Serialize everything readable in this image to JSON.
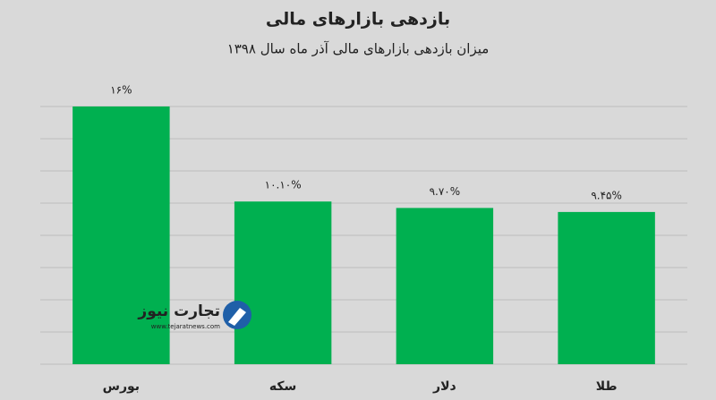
{
  "chart_data": {
    "type": "bar",
    "title": "بازدهی بازارهای مالی",
    "subtitle": "میزان بازدهی بازارهای مالی آذر ماه سال ۱۳۹۸",
    "categories": [
      "بورس",
      "سکه",
      "دلار",
      "طلا"
    ],
    "values": [
      16,
      10.1,
      9.7,
      9.45
    ],
    "value_labels": [
      "۱۶%",
      "۱۰.۱۰%",
      "۹.۷۰%",
      "۹.۴۵%"
    ],
    "color": "#00b050",
    "ylim": [
      0,
      16
    ],
    "yticks": [
      0,
      2,
      4,
      6,
      8,
      10,
      12,
      14,
      16
    ],
    "grid": true
  },
  "watermark": {
    "name": "تجارت نیوز",
    "url": "www.tejaratnews.com"
  }
}
